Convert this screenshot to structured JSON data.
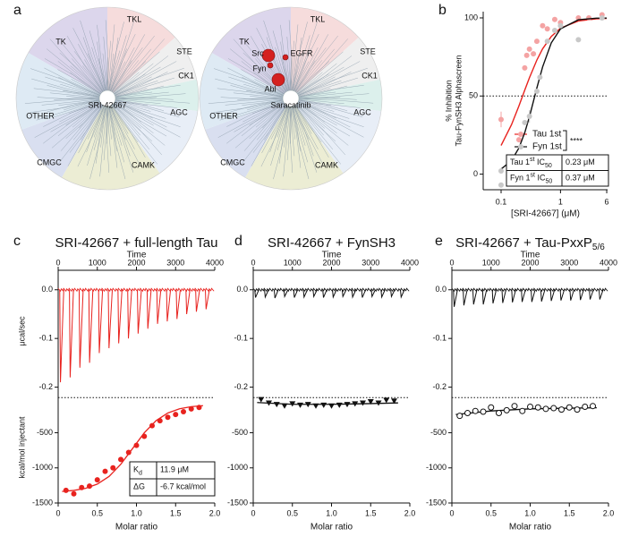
{
  "kinome": {
    "panel": "a",
    "groups": [
      "TK",
      "TKL",
      "STE",
      "CK1",
      "AGC",
      "CAMK",
      "CMGC",
      "OTHER"
    ],
    "group_colors": [
      "#dcd6ec",
      "#f6dcdc",
      "#efefef",
      "#dcf0ec",
      "#e8eef7",
      "#ecedd4",
      "#d9dff0",
      "#deeaf4"
    ],
    "group_label_colors": [
      "#6a5a9a",
      "#d05050",
      "#888888",
      "#3aa39a",
      "#5a6a9a",
      "#9a9a40",
      "#5a6a9a",
      "#4aa0c8"
    ],
    "trees": [
      {
        "name": "SRI-42667",
        "color": "#2e9a2e",
        "hits": []
      },
      {
        "name": "Saracatinib",
        "color": "#111111",
        "hits": [
          "Src",
          "Fyn",
          "EGFR",
          "Abl"
        ]
      }
    ]
  },
  "chart_data": [
    {
      "type": "scatter",
      "panel": "b",
      "log_x": true,
      "xlabel": "[SRI-42667]  (μM)",
      "ylabel": [
        "% Inhibition",
        "Tau-FynSH3 Alphascreen"
      ],
      "xlim": [
        0.05,
        6.2
      ],
      "xticks": [
        0.1,
        1,
        6
      ],
      "ylim": [
        -10,
        104
      ],
      "yticks": [
        0,
        50,
        100
      ],
      "hline": 50,
      "legend": "lower right",
      "annotation": "****",
      "series": [
        {
          "name": "Tau 1st",
          "color": "#f4a3a3",
          "line_color": "#e8221e",
          "x": [
            0.1,
            0.2,
            0.25,
            0.27,
            0.3,
            0.35,
            0.4,
            0.5,
            0.6,
            0.8,
            1,
            2,
            3,
            5
          ],
          "values": [
            35,
            22,
            68,
            76,
            80,
            77,
            85,
            95,
            93,
            99,
            97,
            100,
            100,
            102
          ],
          "errors": [
            5,
            null,
            null,
            null,
            null,
            null,
            null,
            null,
            null,
            null,
            null,
            null,
            null,
            null
          ],
          "fit_x": [
            0.1,
            0.15,
            0.2,
            0.25,
            0.3,
            0.4,
            0.5,
            0.7,
            1,
            2,
            4,
            6
          ],
          "fit_values": [
            18.3,
            31.7,
            43.7,
            53.7,
            61.7,
            73.0,
            80.2,
            88.1,
            93.4,
            98.0,
            99.4,
            99.7
          ]
        },
        {
          "name": "Fyn 1st",
          "color": "#c8c8c8",
          "line_color": "#111111",
          "x": [
            0.1,
            0.1,
            0.25,
            0.3,
            0.4,
            0.45,
            0.6,
            0.8,
            1,
            2,
            5
          ],
          "values": [
            -7,
            2,
            33,
            37,
            53,
            62,
            85,
            92,
            95,
            86,
            100
          ],
          "errors": [
            null,
            null,
            null,
            4,
            null,
            null,
            null,
            null,
            null,
            null,
            null
          ],
          "fit_x": [
            0.1,
            0.15,
            0.2,
            0.25,
            0.3,
            0.4,
            0.5,
            0.7,
            1,
            2,
            4,
            6
          ],
          "fit_values": [
            3.2,
            8.7,
            16.8,
            26.5,
            36.7,
            55.1,
            68.6,
            84.0,
            93.0,
            98.8,
            99.8,
            99.9
          ]
        }
      ],
      "table": [
        [
          [
            {
              "t": "Tau 1"
            },
            {
              "t": "st",
              "s": "sup"
            },
            {
              "t": " IC"
            },
            {
              "t": "50",
              "s": "sub"
            }
          ],
          [
            {
              "t": "0.23 μM"
            }
          ]
        ],
        [
          [
            {
              "t": "Fyn 1"
            },
            {
              "t": "st",
              "s": "sup"
            },
            {
              "t": " IC"
            },
            {
              "t": "50",
              "s": "sub"
            }
          ],
          [
            {
              "t": "0.37 μM"
            }
          ]
        ]
      ]
    },
    {
      "type": "thermogram",
      "panel": "c",
      "title": "SRI-42667 + full-length Tau",
      "xlabel": "Time",
      "ylabel": "μcal/sec",
      "color": "#e8221e",
      "xlim": [
        0,
        4000
      ],
      "xticks": [
        0,
        1000,
        2000,
        3000,
        4000
      ],
      "ylim": [
        -0.21,
        0.04
      ],
      "yticks": [
        {
          "value": 0,
          "label": "0.0"
        },
        -0.1,
        -0.2
      ],
      "x": [
        40,
        288,
        536,
        784,
        1032,
        1280,
        1528,
        1776,
        2024,
        2272,
        2520,
        2768,
        3016,
        3264,
        3512,
        3760
      ],
      "values": [
        -0.19,
        -0.18,
        -0.16,
        -0.15,
        -0.13,
        -0.12,
        -0.11,
        -0.1,
        -0.09,
        -0.08,
        -0.07,
        -0.065,
        -0.06,
        -0.05,
        -0.045,
        -0.04
      ]
    },
    {
      "type": "isotherm",
      "xlabel": "Molar ratio",
      "ylabel": "kcal/mol injectant",
      "color": "#e8221e",
      "marker": "circle",
      "zero_line": true,
      "xlim": [
        0,
        2
      ],
      "xticks": [
        0,
        0.5,
        {
          "value": 1,
          "label": "1.0"
        },
        1.5,
        {
          "value": 2,
          "label": "2.0"
        }
      ],
      "ylim": [
        -1500,
        80
      ],
      "yticks": [
        -500,
        -1000,
        -1500
      ],
      "x": [
        0.1,
        0.2,
        0.3,
        0.4,
        0.5,
        0.6,
        0.7,
        0.8,
        0.9,
        1.0,
        1.1,
        1.2,
        1.3,
        1.4,
        1.5,
        1.6,
        1.7,
        1.8
      ],
      "values": [
        -1320,
        -1370,
        -1280,
        -1260,
        -1170,
        -1050,
        -1000,
        -880,
        -780,
        -680,
        -550,
        -400,
        -330,
        -280,
        -240,
        -200,
        -160,
        -140
      ],
      "fit_x": [
        0.05,
        0.2,
        0.35,
        0.5,
        0.65,
        0.8,
        0.95,
        1.1,
        1.25,
        1.4,
        1.55,
        1.7,
        1.85
      ],
      "fit_values": [
        -1336,
        -1321,
        -1291,
        -1231,
        -1122,
        -949,
        -725,
        -501,
        -328,
        -219,
        -159,
        -129,
        -114
      ],
      "table": [
        [
          [
            {
              "t": "K"
            },
            {
              "t": "d",
              "s": "sub"
            }
          ],
          [
            {
              "t": "11.9 μM"
            }
          ]
        ],
        [
          [
            {
              "t": "ΔG"
            }
          ],
          [
            {
              "t": "-6.7 kcal/mol"
            }
          ]
        ]
      ]
    },
    {
      "type": "thermogram",
      "panel": "d",
      "title": "SRI-42667 + FynSH3",
      "xlabel": "Time",
      "color": "#111111",
      "xlim": [
        0,
        4000
      ],
      "xticks": [
        0,
        1000,
        2000,
        3000,
        4000
      ],
      "ylim": [
        -0.21,
        0.04
      ],
      "yticks": [
        {
          "value": 0,
          "label": "0.0"
        },
        -0.1,
        -0.2
      ],
      "x": [
        40,
        288,
        536,
        784,
        1032,
        1280,
        1528,
        1776,
        2024,
        2272,
        2520,
        2768,
        3016,
        3264,
        3512,
        3760
      ],
      "values": [
        -0.016,
        -0.015,
        -0.017,
        -0.014,
        -0.016,
        -0.015,
        -0.014,
        -0.016,
        -0.015,
        -0.014,
        -0.015,
        -0.016,
        -0.014,
        -0.015,
        -0.014,
        -0.015
      ]
    },
    {
      "type": "isotherm",
      "xlabel": "Molar ratio",
      "color": "#111111",
      "marker": "triangle",
      "zero_line": true,
      "xlim": [
        0,
        2
      ],
      "xticks": [
        0,
        0.5,
        {
          "value": 1,
          "label": "1.0"
        },
        1.5,
        {
          "value": 2,
          "label": "2.0"
        }
      ],
      "ylim": [
        -1500,
        80
      ],
      "yticks": [
        -500,
        -1000,
        -1500
      ],
      "x": [
        0.1,
        0.2,
        0.3,
        0.4,
        0.5,
        0.6,
        0.7,
        0.8,
        0.9,
        1.0,
        1.1,
        1.2,
        1.3,
        1.4,
        1.5,
        1.6,
        1.7,
        1.8
      ],
      "values": [
        -30,
        -80,
        -100,
        -120,
        -90,
        -110,
        -100,
        -120,
        -110,
        -120,
        -110,
        -100,
        -90,
        -80,
        -60,
        -80,
        -40,
        -50
      ],
      "fit_x": [
        0.05,
        0.5,
        1,
        1.5,
        1.85
      ],
      "fit_values": [
        -70,
        -95,
        -95,
        -85,
        -75
      ]
    },
    {
      "type": "thermogram",
      "panel": "e",
      "title": "SRI-42667 + Tau-PxxP",
      "title_sub": "5/6",
      "xlabel": "Time",
      "color": "#111111",
      "xlim": [
        0,
        4000
      ],
      "xticks": [
        0,
        1000,
        2000,
        3000,
        4000
      ],
      "ylim": [
        -0.21,
        0.04
      ],
      "yticks": [
        {
          "value": 0,
          "label": "0.0"
        },
        -0.1,
        -0.2
      ],
      "x": [
        40,
        288,
        536,
        784,
        1032,
        1280,
        1528,
        1776,
        2024,
        2272,
        2520,
        2768,
        3016,
        3264,
        3512,
        3760
      ],
      "values": [
        -0.035,
        -0.032,
        -0.03,
        -0.03,
        -0.028,
        -0.027,
        -0.026,
        -0.025,
        -0.025,
        -0.024,
        -0.023,
        -0.022,
        -0.022,
        -0.021,
        -0.02,
        -0.02
      ]
    },
    {
      "type": "isotherm",
      "xlabel": "Molar ratio",
      "color": "#111111",
      "marker": "open-circle",
      "zero_line": true,
      "xlim": [
        0,
        2
      ],
      "xticks": [
        0,
        0.5,
        {
          "value": 1,
          "label": "1.0"
        },
        1.5,
        {
          "value": 2,
          "label": "2.0"
        }
      ],
      "ylim": [
        -1500,
        80
      ],
      "yticks": [
        -500,
        -1000,
        -1500
      ],
      "x": [
        0.1,
        0.2,
        0.3,
        0.4,
        0.5,
        0.6,
        0.7,
        0.8,
        0.9,
        1.0,
        1.1,
        1.2,
        1.3,
        1.4,
        1.5,
        1.6,
        1.7,
        1.8
      ],
      "values": [
        -260,
        -220,
        -190,
        -200,
        -140,
        -220,
        -180,
        -120,
        -190,
        -130,
        -140,
        -160,
        -150,
        -170,
        -140,
        -170,
        -130,
        -120
      ],
      "fit_x": [
        0.05,
        0.5,
        1,
        1.5,
        1.85
      ],
      "fit_values": [
        -240,
        -190,
        -160,
        -150,
        -145
      ]
    }
  ]
}
